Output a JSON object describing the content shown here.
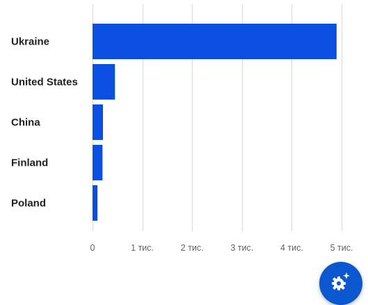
{
  "chart_data": {
    "type": "bar",
    "orientation": "horizontal",
    "categories": [
      "Ukraine",
      "United States",
      "China",
      "Finland",
      "Poland"
    ],
    "values": [
      4900,
      450,
      210,
      200,
      100
    ],
    "xlim": [
      0,
      5000
    ],
    "x_ticks": [
      0,
      1000,
      2000,
      3000,
      4000,
      5000
    ],
    "x_tick_labels": [
      "0",
      "1 тис.",
      "2 тис.",
      "3 тис.",
      "4 тис.",
      "5 тис."
    ],
    "bar_color": "#0b4fe0",
    "grid": true,
    "title": "",
    "xlabel": "",
    "ylabel": ""
  },
  "fab": {
    "icon": "sparkle-gear-icon",
    "color": "#0b57d0"
  }
}
